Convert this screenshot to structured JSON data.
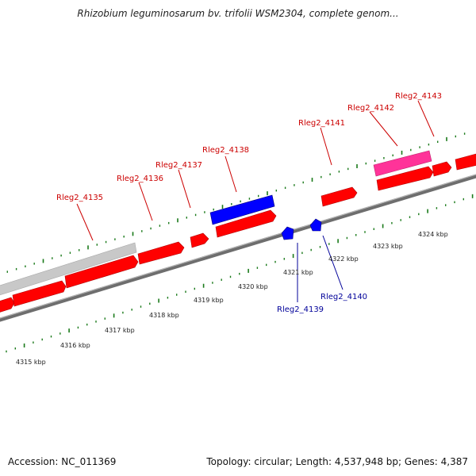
{
  "title": "Rhizobium leguminosarum bv. trifolii WSM2304, complete genom...",
  "footer": {
    "accession": "Accession: NC_011369",
    "stats": "Topology: circular; Length: 4,537,948 bp; Genes: 4,387"
  },
  "colors": {
    "forward_gene": "#ff0000",
    "reverse_gene": "#0000ff",
    "pink_gene": "#ff3399",
    "gray_feature": "#c8c8c8",
    "backbone": "#7a7a7a",
    "ticks": "#1a7a1a",
    "forward_label": "#cc0000",
    "reverse_label": "#000099"
  },
  "scale": {
    "unit": "kbp",
    "labels": [
      "4315 kbp",
      "4316 kbp",
      "4317 kbp",
      "4318 kbp",
      "4319 kbp",
      "4320 kbp",
      "4321 kbp",
      "4322 kbp",
      "4323 kbp",
      "4324 kbp"
    ]
  },
  "genes_forward": [
    {
      "label": "Rleg2_4135"
    },
    {
      "label": "Rleg2_4136"
    },
    {
      "label": "Rleg2_4137"
    },
    {
      "label": "Rleg2_4138"
    },
    {
      "label": "Rleg2_4141"
    },
    {
      "label": "Rleg2_4142"
    },
    {
      "label": "Rleg2_4143"
    }
  ],
  "genes_reverse": [
    {
      "label": "Rleg2_4139"
    },
    {
      "label": "Rleg2_4140"
    }
  ]
}
